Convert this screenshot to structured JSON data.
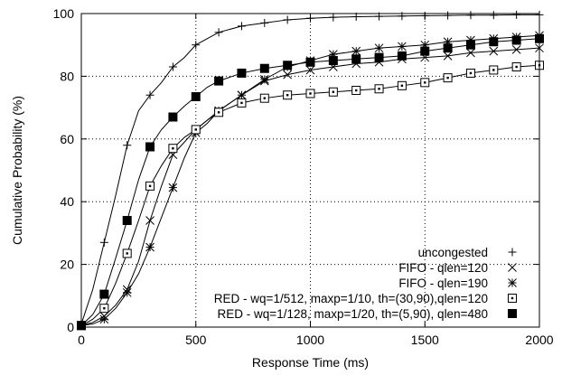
{
  "chart_data": {
    "type": "line",
    "xlabel": "Response Time (ms)",
    "ylabel": "Cumulative Probability (%)",
    "xlim": [
      0,
      2000
    ],
    "ylim": [
      0,
      100
    ],
    "x_ticks": [
      "0",
      "500",
      "1000",
      "1500",
      "2000"
    ],
    "y_ticks": [
      "0",
      "20",
      "40",
      "60",
      "80",
      "100"
    ],
    "grid": "dotted, major ticks",
    "legend_position": "bottom-right",
    "series": [
      {
        "name": "uncongested",
        "marker": "plus",
        "x": [
          0,
          50,
          100,
          150,
          200,
          250,
          300,
          350,
          400,
          450,
          500,
          600,
          700,
          800,
          900,
          1000,
          1100,
          1200,
          1300,
          1400,
          1500,
          1600,
          1700,
          1800,
          1900,
          2000
        ],
        "y": [
          1,
          12,
          27,
          42,
          58,
          69,
          74,
          78,
          83,
          86,
          90,
          94,
          96,
          97,
          98,
          98.5,
          98.8,
          99,
          99.1,
          99.2,
          99.3,
          99.4,
          99.5,
          99.5,
          99.6,
          99.6
        ],
        "marker_x": [
          0,
          100,
          200,
          300,
          400,
          500,
          600,
          700,
          800,
          900,
          1000,
          1100,
          1200,
          1300,
          1400,
          1500,
          1600,
          1700,
          1800,
          1900,
          2000
        ],
        "marker_y": [
          1,
          27,
          58,
          74,
          83,
          90,
          94,
          96,
          97,
          98,
          98.5,
          98.8,
          99,
          99.1,
          99.2,
          99.3,
          99.4,
          99.5,
          99.5,
          99.6,
          99.6
        ]
      },
      {
        "name": "FIFO - qlen=120",
        "marker": "cross",
        "x": [
          0,
          50,
          100,
          150,
          200,
          250,
          300,
          350,
          400,
          450,
          500,
          550,
          600,
          700,
          800,
          900,
          1000,
          1100,
          1200,
          1300,
          1400,
          1500,
          1600,
          1700,
          1800,
          1900,
          2000
        ],
        "y": [
          0.5,
          1.5,
          3.5,
          7,
          12,
          21,
          34,
          45,
          55,
          59,
          63,
          66,
          69,
          74,
          78.5,
          80.5,
          82,
          83,
          84,
          84.5,
          85.5,
          86,
          86.5,
          87.5,
          88,
          88.5,
          89
        ],
        "marker_x": [
          0,
          100,
          200,
          300,
          400,
          500,
          600,
          700,
          800,
          900,
          1000,
          1100,
          1200,
          1300,
          1400,
          1500,
          1600,
          1700,
          1800,
          1900,
          2000
        ],
        "marker_y": [
          0.5,
          3.5,
          12,
          34,
          55,
          63,
          69,
          74,
          78.5,
          80.5,
          82,
          83,
          84,
          84.5,
          85.5,
          86,
          86.5,
          87.5,
          88,
          88.5,
          89
        ]
      },
      {
        "name": "FIFO - qlen=190",
        "marker": "star",
        "x": [
          0,
          50,
          100,
          150,
          200,
          250,
          300,
          350,
          400,
          450,
          500,
          550,
          600,
          700,
          800,
          900,
          1000,
          1100,
          1200,
          1300,
          1400,
          1500,
          1600,
          1700,
          1800,
          1900,
          2000
        ],
        "y": [
          0.5,
          1,
          2.5,
          6,
          11,
          17,
          25.5,
          35,
          44.5,
          54,
          62,
          65,
          69,
          74,
          79,
          83,
          85,
          87,
          88,
          89,
          89.5,
          90,
          91,
          91.5,
          92,
          92.5,
          93
        ],
        "marker_x": [
          0,
          100,
          200,
          300,
          400,
          500,
          600,
          700,
          800,
          900,
          1000,
          1100,
          1200,
          1300,
          1400,
          1500,
          1600,
          1700,
          1800,
          1900,
          2000
        ],
        "marker_y": [
          0.5,
          2.5,
          11,
          25.5,
          44.5,
          62,
          69,
          74,
          79,
          83,
          85,
          87,
          88,
          89,
          89.5,
          90,
          91,
          91.5,
          92,
          92.5,
          93
        ]
      },
      {
        "name": "RED - wq=1/512, maxp=1/10, th=(30,90),qlen=120",
        "marker": "open-square",
        "x": [
          0,
          50,
          100,
          150,
          200,
          250,
          300,
          350,
          400,
          450,
          500,
          550,
          600,
          700,
          800,
          900,
          1000,
          1100,
          1200,
          1300,
          1400,
          1500,
          1600,
          1700,
          1800,
          1900,
          2000
        ],
        "y": [
          0.5,
          2.5,
          6,
          14,
          23.5,
          34,
          45,
          51.5,
          57,
          60.5,
          63,
          66,
          68.5,
          71.5,
          73,
          74,
          74.5,
          75,
          75.5,
          76,
          77,
          78,
          79.5,
          81,
          82,
          83,
          83.5
        ],
        "marker_x": [
          0,
          100,
          200,
          300,
          400,
          500,
          600,
          700,
          800,
          900,
          1000,
          1100,
          1200,
          1300,
          1400,
          1500,
          1600,
          1700,
          1800,
          1900,
          2000
        ],
        "marker_y": [
          0.5,
          6,
          23.5,
          45,
          57,
          63,
          68.5,
          71.5,
          73,
          74,
          74.5,
          75,
          75.5,
          76,
          77,
          78,
          79.5,
          81,
          82,
          83,
          83.5
        ]
      },
      {
        "name": "RED - wq=1/128, maxp=1/20, th=(5,90), qlen=480",
        "marker": "filled-square",
        "x": [
          0,
          50,
          100,
          150,
          200,
          250,
          300,
          350,
          400,
          450,
          500,
          550,
          600,
          700,
          800,
          900,
          1000,
          1100,
          1200,
          1300,
          1400,
          1500,
          1600,
          1700,
          1800,
          1900,
          2000
        ],
        "y": [
          0.5,
          4,
          10.5,
          22,
          34,
          47,
          57.5,
          63,
          67,
          70.5,
          73.5,
          76.5,
          78.5,
          81,
          82.5,
          83.5,
          84.5,
          85,
          85.5,
          86,
          86.5,
          88,
          89,
          90,
          91,
          91.5,
          92
        ],
        "marker_x": [
          0,
          100,
          200,
          300,
          400,
          500,
          600,
          700,
          800,
          900,
          1000,
          1100,
          1200,
          1300,
          1400,
          1500,
          1600,
          1700,
          1800,
          1900,
          2000
        ],
        "marker_y": [
          0.5,
          10.5,
          34,
          57.5,
          67,
          73.5,
          78.5,
          81,
          82.5,
          83.5,
          84.5,
          85,
          85.5,
          86,
          86.5,
          88,
          89,
          90,
          91,
          91.5,
          92
        ]
      }
    ]
  }
}
